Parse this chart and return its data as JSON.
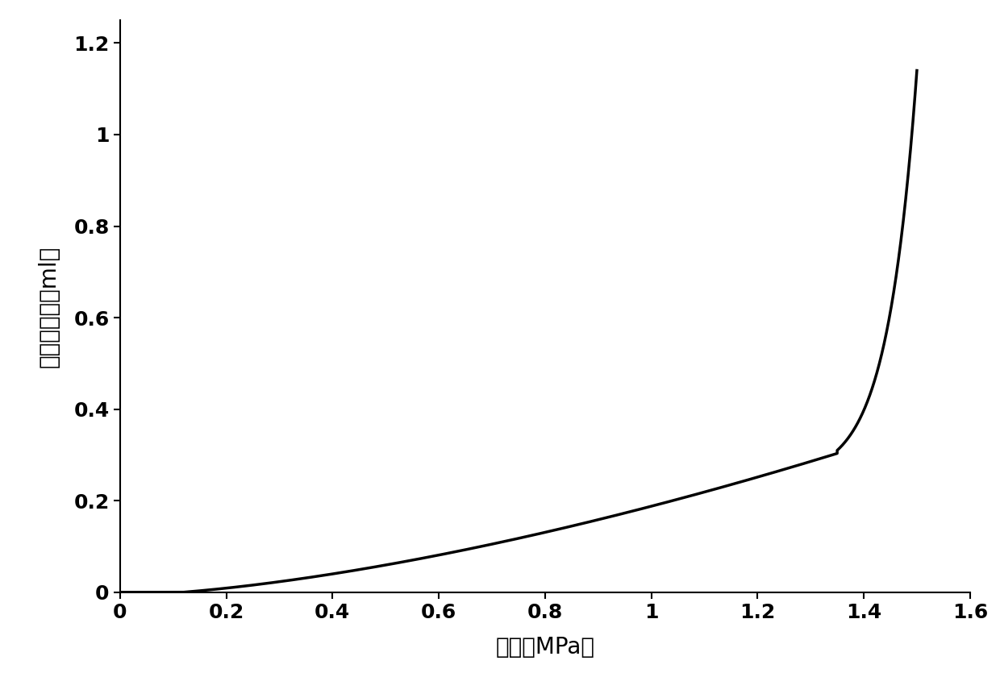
{
  "xlabel": "压差（MPa）",
  "ylabel": "累产液体积（ml）",
  "xlim": [
    0,
    1.6
  ],
  "ylim": [
    0,
    1.25
  ],
  "xticks": [
    0,
    0.2,
    0.4,
    0.6,
    0.8,
    1.0,
    1.2,
    1.4,
    1.6
  ],
  "yticks": [
    0,
    0.2,
    0.4,
    0.6,
    0.8,
    1.0,
    1.2
  ],
  "line_color": "#000000",
  "line_width": 2.5,
  "background_color": "#ffffff",
  "font_size_label": 20,
  "font_size_tick": 18
}
